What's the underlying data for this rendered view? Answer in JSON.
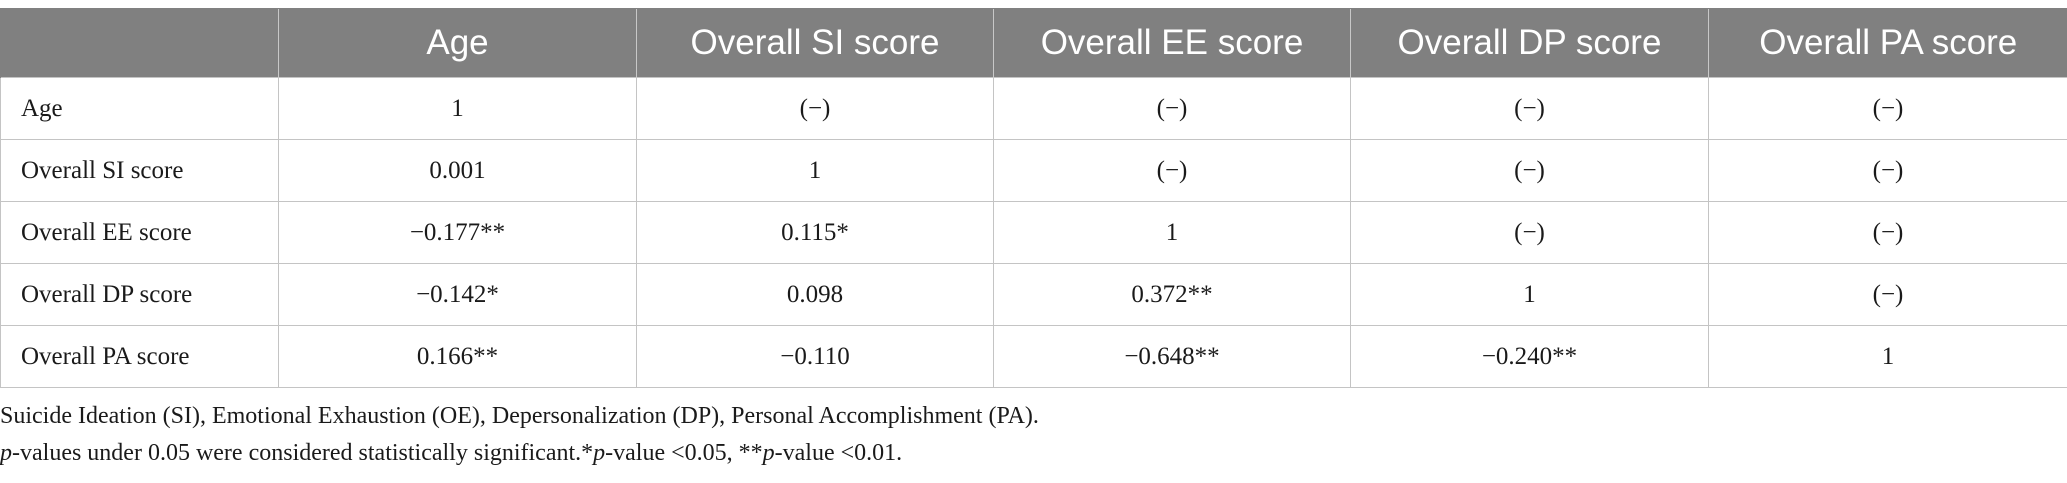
{
  "table": {
    "headers": [
      "",
      "Age",
      "Overall SI score",
      "Overall EE score",
      "Overall DP score",
      "Overall PA score"
    ],
    "rows": [
      {
        "label": "Age",
        "cells": [
          "1",
          "(−)",
          "(−)",
          "(−)",
          "(−)"
        ]
      },
      {
        "label": "Overall SI score",
        "cells": [
          "0.001",
          "1",
          "(−)",
          "(−)",
          "(−)"
        ]
      },
      {
        "label": "Overall EE score",
        "cells": [
          "−0.177**",
          "0.115*",
          "1",
          "(−)",
          "(−)"
        ]
      },
      {
        "label": "Overall DP score",
        "cells": [
          "−0.142*",
          "0.098",
          "0.372**",
          "1",
          "(−)"
        ]
      },
      {
        "label": "Overall PA score",
        "cells": [
          "0.166**",
          "−0.110",
          "−0.648**",
          "−0.240**",
          "1"
        ]
      }
    ]
  },
  "notes": {
    "abbreviations": "Suicide Ideation (SI), Emotional Exhaustion (OE), Depersonalization (DP), Personal Accomplishment (PA).",
    "significance": {
      "p1": "p",
      "t1": "-values under 0.05 were considered statistically significant.*",
      "p2": "p",
      "t2": "-value <0.05, **",
      "p3": "p",
      "t3": "-value <0.01."
    }
  }
}
